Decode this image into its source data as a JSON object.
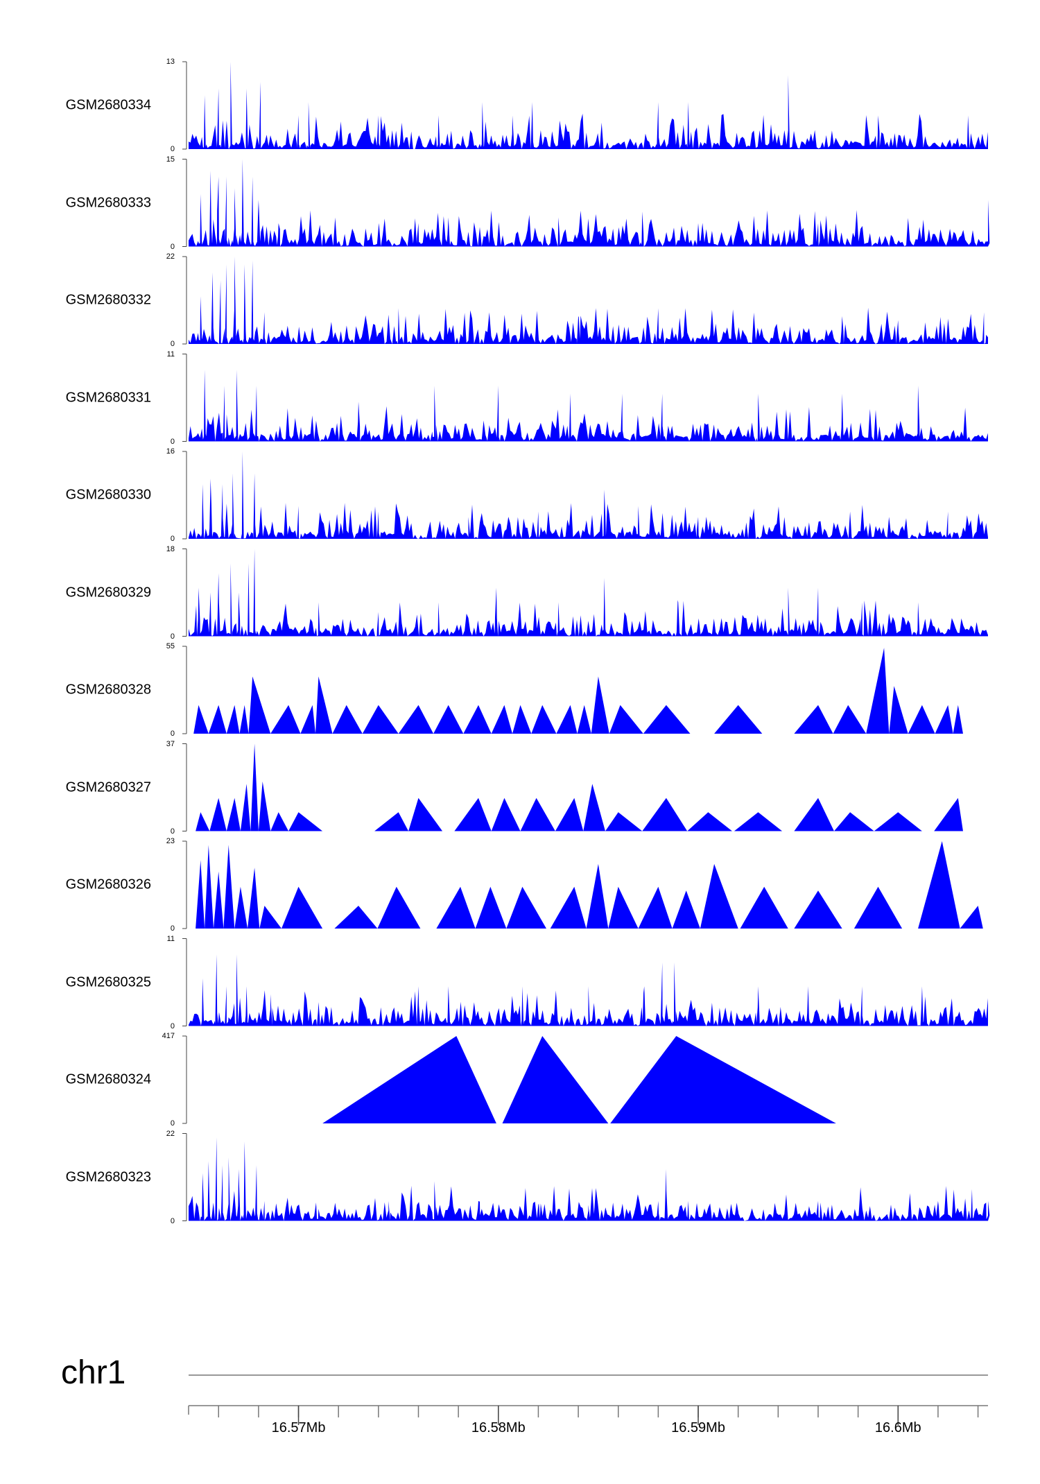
{
  "chart_data": {
    "type": "area",
    "chromosome": "chr1",
    "x_range_mb": [
      16.5645,
      16.6045
    ],
    "x_tick_labels": [
      "16.57Mb",
      "16.58Mb",
      "16.59Mb",
      "16.6Mb"
    ],
    "x_tick_values": [
      16.57,
      16.58,
      16.59,
      16.6
    ],
    "minor_tick_step_mb": 0.002,
    "series_color": "#0000ff",
    "tracks": [
      {
        "name": "GSM2680334",
        "ymax": 13,
        "ymin_label": "0",
        "ymax_label": "13",
        "pattern": "dense",
        "spikes": [
          [
            16.5653,
            8
          ],
          [
            16.566,
            9
          ],
          [
            16.5666,
            13
          ],
          [
            16.5674,
            9
          ],
          [
            16.5681,
            10
          ],
          [
            16.57,
            5
          ],
          [
            16.5705,
            7
          ],
          [
            16.574,
            5
          ],
          [
            16.577,
            5
          ],
          [
            16.5792,
            7
          ],
          [
            16.5807,
            5
          ],
          [
            16.5817,
            7
          ],
          [
            16.588,
            7
          ],
          [
            16.5895,
            7
          ],
          [
            16.5945,
            11
          ],
          [
            16.599,
            5
          ],
          [
            16.6035,
            5
          ]
        ]
      },
      {
        "name": "GSM2680333",
        "ymax": 15,
        "ymin_label": "0",
        "ymax_label": "15",
        "pattern": "dense",
        "spikes": [
          [
            16.5651,
            9
          ],
          [
            16.5656,
            13
          ],
          [
            16.566,
            12
          ],
          [
            16.5664,
            12
          ],
          [
            16.5668,
            10
          ],
          [
            16.5672,
            15
          ],
          [
            16.5677,
            12
          ],
          [
            16.568,
            8
          ],
          [
            16.569,
            4
          ],
          [
            16.576,
            4
          ],
          [
            16.5775,
            5
          ],
          [
            16.583,
            5
          ],
          [
            16.5872,
            6
          ],
          [
            16.59,
            4
          ],
          [
            16.596,
            4
          ],
          [
            16.6045,
            8
          ]
        ]
      },
      {
        "name": "GSM2680332",
        "ymax": 22,
        "ymin_label": "0",
        "ymax_label": "22",
        "pattern": "dense",
        "spikes": [
          [
            16.5651,
            12
          ],
          [
            16.5657,
            18
          ],
          [
            16.5661,
            16
          ],
          [
            16.5664,
            20
          ],
          [
            16.5668,
            22
          ],
          [
            16.5673,
            20
          ],
          [
            16.5677,
            21
          ],
          [
            16.5683,
            8
          ],
          [
            16.575,
            9
          ],
          [
            16.584,
            7
          ],
          [
            16.588,
            9
          ],
          [
            16.5972,
            7
          ],
          [
            16.6,
            6
          ],
          [
            16.6043,
            8
          ]
        ]
      },
      {
        "name": "GSM2680331",
        "ymax": 11,
        "ymin_label": "0",
        "ymax_label": "11",
        "pattern": "dense",
        "spikes": [
          [
            16.5653,
            9
          ],
          [
            16.5663,
            7
          ],
          [
            16.5669,
            9
          ],
          [
            16.5679,
            7
          ],
          [
            16.573,
            5
          ],
          [
            16.5768,
            7
          ],
          [
            16.58,
            7
          ],
          [
            16.5836,
            6
          ],
          [
            16.5862,
            6
          ],
          [
            16.5882,
            6
          ],
          [
            16.593,
            6
          ],
          [
            16.5972,
            6
          ],
          [
            16.601,
            7
          ]
        ]
      },
      {
        "name": "GSM2680330",
        "ymax": 16,
        "ymin_label": "0",
        "ymax_label": "16",
        "pattern": "dense",
        "spikes": [
          [
            16.5652,
            10
          ],
          [
            16.5656,
            11
          ],
          [
            16.5662,
            10
          ],
          [
            16.5667,
            12
          ],
          [
            16.5672,
            16
          ],
          [
            16.5678,
            12
          ],
          [
            16.57,
            6
          ],
          [
            16.574,
            5
          ],
          [
            16.5785,
            4
          ],
          [
            16.582,
            5
          ],
          [
            16.5853,
            9
          ],
          [
            16.587,
            6
          ],
          [
            16.59,
            4
          ],
          [
            16.5976,
            5
          ],
          [
            16.6025,
            5
          ]
        ]
      },
      {
        "name": "GSM2680329",
        "ymax": 18,
        "ymin_label": "0",
        "ymax_label": "18",
        "pattern": "dense",
        "spikes": [
          [
            16.565,
            10
          ],
          [
            16.5656,
            9
          ],
          [
            16.566,
            13
          ],
          [
            16.5666,
            15
          ],
          [
            16.567,
            9
          ],
          [
            16.5675,
            15
          ],
          [
            16.5678,
            18
          ],
          [
            16.571,
            7
          ],
          [
            16.574,
            5
          ],
          [
            16.577,
            7
          ],
          [
            16.5799,
            10
          ],
          [
            16.583,
            7
          ],
          [
            16.5853,
            12
          ],
          [
            16.589,
            7
          ],
          [
            16.5945,
            10
          ],
          [
            16.596,
            10
          ],
          [
            16.5982,
            7
          ],
          [
            16.601,
            7
          ]
        ]
      },
      {
        "name": "GSM2680328",
        "ymax": 55,
        "ymin_label": "0",
        "ymax_label": "55",
        "pattern": "sparse",
        "spikes": [
          [
            16.565,
            18
          ],
          [
            16.566,
            18
          ],
          [
            16.5668,
            18
          ],
          [
            16.5673,
            18
          ],
          [
            16.5677,
            36
          ],
          [
            16.5695,
            18
          ],
          [
            16.5707,
            18
          ],
          [
            16.571,
            36
          ],
          [
            16.5724,
            18
          ],
          [
            16.574,
            18
          ],
          [
            16.576,
            18
          ],
          [
            16.5775,
            18
          ],
          [
            16.579,
            18
          ],
          [
            16.5803,
            18
          ],
          [
            16.5811,
            18
          ],
          [
            16.5822,
            18
          ],
          [
            16.5836,
            18
          ],
          [
            16.5843,
            18
          ],
          [
            16.585,
            36
          ],
          [
            16.5861,
            18
          ],
          [
            16.5884,
            18
          ],
          [
            16.592,
            18
          ],
          [
            16.596,
            18
          ],
          [
            16.5975,
            18
          ],
          [
            16.5993,
            54
          ],
          [
            16.5998,
            30
          ],
          [
            16.6012,
            18
          ],
          [
            16.6025,
            18
          ],
          [
            16.603,
            18
          ]
        ]
      },
      {
        "name": "GSM2680327",
        "ymax": 37,
        "ymin_label": "0",
        "ymax_label": "37",
        "pattern": "sparse",
        "spikes": [
          [
            16.5651,
            8
          ],
          [
            16.566,
            14
          ],
          [
            16.5668,
            14
          ],
          [
            16.5674,
            20
          ],
          [
            16.5678,
            37
          ],
          [
            16.5682,
            21
          ],
          [
            16.569,
            8
          ],
          [
            16.57,
            8
          ],
          [
            16.575,
            8
          ],
          [
            16.576,
            14
          ],
          [
            16.579,
            14
          ],
          [
            16.5803,
            14
          ],
          [
            16.5819,
            14
          ],
          [
            16.5838,
            14
          ],
          [
            16.5847,
            20
          ],
          [
            16.586,
            8
          ],
          [
            16.5884,
            14
          ],
          [
            16.5905,
            8
          ],
          [
            16.593,
            8
          ],
          [
            16.596,
            14
          ],
          [
            16.5976,
            8
          ],
          [
            16.6,
            8
          ],
          [
            16.603,
            14
          ]
        ]
      },
      {
        "name": "GSM2680326",
        "ymax": 23,
        "ymin_label": "0",
        "ymax_label": "23",
        "pattern": "sparse",
        "spikes": [
          [
            16.5651,
            18
          ],
          [
            16.5655,
            22
          ],
          [
            16.566,
            15
          ],
          [
            16.5665,
            22
          ],
          [
            16.5671,
            11
          ],
          [
            16.5678,
            16
          ],
          [
            16.5683,
            6
          ],
          [
            16.57,
            11
          ],
          [
            16.573,
            6
          ],
          [
            16.5749,
            11
          ],
          [
            16.5781,
            11
          ],
          [
            16.5796,
            11
          ],
          [
            16.5812,
            11
          ],
          [
            16.5838,
            11
          ],
          [
            16.585,
            17
          ],
          [
            16.586,
            11
          ],
          [
            16.588,
            11
          ],
          [
            16.5894,
            10
          ],
          [
            16.5908,
            17
          ],
          [
            16.5933,
            11
          ],
          [
            16.596,
            10
          ],
          [
            16.599,
            11
          ],
          [
            16.6022,
            23
          ],
          [
            16.604,
            6
          ]
        ]
      },
      {
        "name": "GSM2680325",
        "ymax": 11,
        "ymin_label": "0",
        "ymax_label": "11",
        "pattern": "dense",
        "spikes": [
          [
            16.5652,
            6
          ],
          [
            16.5659,
            9
          ],
          [
            16.5664,
            5
          ],
          [
            16.5669,
            9
          ],
          [
            16.5674,
            5
          ],
          [
            16.5686,
            4
          ],
          [
            16.571,
            3
          ],
          [
            16.576,
            5
          ],
          [
            16.5775,
            5
          ],
          [
            16.5812,
            5
          ],
          [
            16.5845,
            5
          ],
          [
            16.5873,
            5
          ],
          [
            16.5882,
            8
          ],
          [
            16.5888,
            8
          ],
          [
            16.593,
            5
          ],
          [
            16.5955,
            5
          ],
          [
            16.5982,
            5
          ],
          [
            16.6012,
            5
          ]
        ]
      },
      {
        "name": "GSM2680324",
        "ymax": 417,
        "ymin_label": "0",
        "ymax_label": "417",
        "pattern": "triangles",
        "triangles": [
          [
            16.5712,
            16.5779,
            16.5799
          ],
          [
            16.5802,
            16.5822,
            16.5855
          ],
          [
            16.5856,
            16.5889,
            16.5969
          ]
        ],
        "peak_value": 417
      },
      {
        "name": "GSM2680323",
        "ymax": 22,
        "ymin_label": "0",
        "ymax_label": "22",
        "pattern": "dense",
        "spikes": [
          [
            16.5652,
            12
          ],
          [
            16.5655,
            15
          ],
          [
            16.5659,
            21
          ],
          [
            16.5662,
            14
          ],
          [
            16.5665,
            16
          ],
          [
            16.567,
            13
          ],
          [
            16.5673,
            20
          ],
          [
            16.5679,
            14
          ],
          [
            16.5683,
            5
          ],
          [
            16.571,
            3
          ],
          [
            16.5745,
            5
          ],
          [
            16.5768,
            10
          ],
          [
            16.579,
            5
          ],
          [
            16.582,
            4
          ],
          [
            16.5845,
            4
          ],
          [
            16.588,
            5
          ],
          [
            16.5884,
            13
          ],
          [
            16.5895,
            5
          ],
          [
            16.596,
            5
          ],
          [
            16.602,
            5
          ],
          [
            16.6037,
            8
          ],
          [
            16.6045,
            5
          ]
        ]
      }
    ]
  }
}
